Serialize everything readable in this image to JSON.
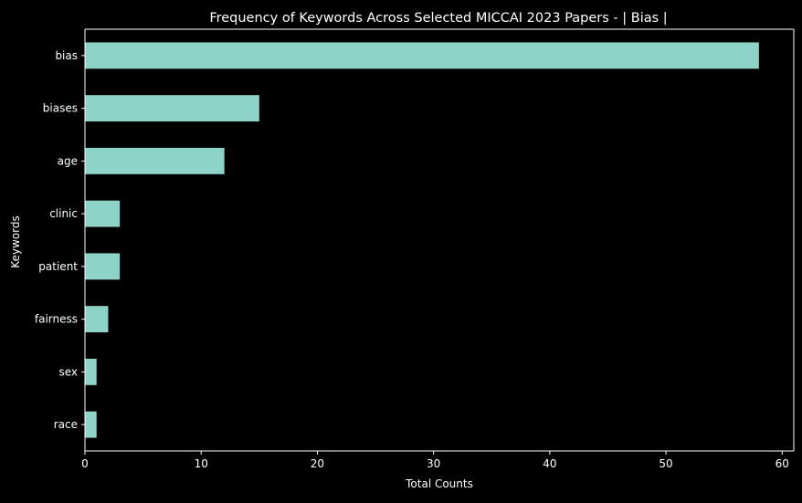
{
  "chart_data": {
    "type": "bar",
    "orientation": "horizontal",
    "title": "Frequency of Keywords Across Selected MICCAI 2023 Papers - | Bias |",
    "xlabel": "Total Counts",
    "ylabel": "Keywords",
    "categories": [
      "bias",
      "biases",
      "age",
      "clinic",
      "patient",
      "fairness",
      "sex",
      "race"
    ],
    "values": [
      58,
      15,
      12,
      3,
      3,
      2,
      1,
      1
    ],
    "xlim": [
      0,
      61
    ],
    "xticks": [
      0,
      10,
      20,
      30,
      40,
      50,
      60
    ],
    "grid": false,
    "legend": "none",
    "colors": {
      "background": "#000000",
      "bar": "#8dd3c7",
      "text": "#ffffff",
      "axis": "#ffffff"
    }
  }
}
